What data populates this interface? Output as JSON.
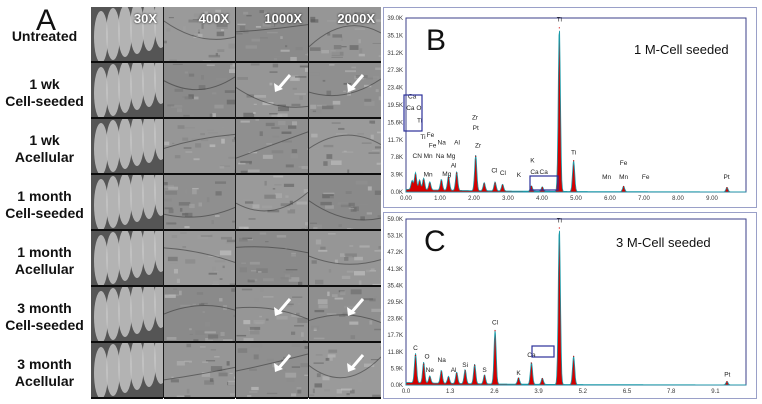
{
  "panel_a": {
    "letter": "A",
    "row_labels": [
      [
        "Untreated"
      ],
      [
        "1 wk",
        "Cell-seeded"
      ],
      [
        "1 wk",
        "Acellular"
      ],
      [
        "1 month",
        "Cell-seeded"
      ],
      [
        "1 month",
        "Acellular"
      ],
      [
        "3 month",
        "Cell-seeded"
      ],
      [
        "3 month",
        "Acellular"
      ]
    ],
    "magnifications": [
      "30X",
      "400X",
      "1000X",
      "2000X"
    ]
  },
  "chart_data": [
    {
      "type": "line",
      "panel": "B",
      "title": "1 M-Cell seeded",
      "xlabel": "",
      "ylabel": "",
      "xlim": [
        0,
        10
      ],
      "ylim": [
        0,
        39.0
      ],
      "x_ticks": [
        "0.00",
        "1.00",
        "2.00",
        "3.00",
        "4.00",
        "5.00",
        "6.00",
        "7.00",
        "8.00",
        "9.00"
      ],
      "y_ticks": [
        "0.0K",
        "3.9K",
        "7.8K",
        "11.7K",
        "15.6K",
        "19.5K",
        "23.4K",
        "27.3K",
        "31.2K",
        "35.1K",
        "39.0K"
      ],
      "peaks": [
        {
          "x": 0.18,
          "y": 2.0
        },
        {
          "x": 0.28,
          "y": 3.8
        },
        {
          "x": 0.4,
          "y": 2.2
        },
        {
          "x": 0.52,
          "y": 2.6
        },
        {
          "x": 0.7,
          "y": 1.8
        },
        {
          "x": 1.04,
          "y": 2.4
        },
        {
          "x": 1.25,
          "y": 3.2
        },
        {
          "x": 1.49,
          "y": 4.2
        },
        {
          "x": 2.05,
          "y": 8.0
        },
        {
          "x": 2.3,
          "y": 1.8
        },
        {
          "x": 2.62,
          "y": 2.0
        },
        {
          "x": 2.84,
          "y": 1.5
        },
        {
          "x": 3.69,
          "y": 1.2
        },
        {
          "x": 4.01,
          "y": 1.0
        },
        {
          "x": 4.51,
          "y": 36.8
        },
        {
          "x": 4.93,
          "y": 7.0
        },
        {
          "x": 6.4,
          "y": 1.2
        },
        {
          "x": 9.44,
          "y": 1.0
        }
      ],
      "peak_labels": [
        {
          "text": "C",
          "x": 0.26,
          "y": 7.6
        },
        {
          "text": "N",
          "x": 0.4,
          "y": 7.6
        },
        {
          "text": "Mn",
          "x": 0.65,
          "y": 7.6
        },
        {
          "text": "Ti",
          "x": 0.4,
          "y": 15.6
        },
        {
          "text": "Ti",
          "x": 0.5,
          "y": 11.9
        },
        {
          "text": "Fe",
          "x": 0.78,
          "y": 10.0
        },
        {
          "text": "Mn",
          "x": 0.65,
          "y": 3.5
        },
        {
          "text": "Fe",
          "x": 0.72,
          "y": 12.3
        },
        {
          "text": "Na",
          "x": 1.05,
          "y": 10.6
        },
        {
          "text": "Mg",
          "x": 1.32,
          "y": 7.6
        },
        {
          "text": "Al",
          "x": 1.5,
          "y": 10.6
        },
        {
          "text": "Na",
          "x": 1.0,
          "y": 7.6
        },
        {
          "text": "Mg",
          "x": 1.2,
          "y": 3.6
        },
        {
          "text": "Al",
          "x": 1.4,
          "y": 5.5
        },
        {
          "text": "Zr",
          "x": 2.03,
          "y": 16.2
        },
        {
          "text": "Pt",
          "x": 2.05,
          "y": 13.9
        },
        {
          "text": "Zr",
          "x": 2.12,
          "y": 10.0
        },
        {
          "text": "Cl",
          "x": 2.6,
          "y": 4.4
        },
        {
          "text": "Cl",
          "x": 2.85,
          "y": 3.8
        },
        {
          "text": "K",
          "x": 3.32,
          "y": 3.4
        },
        {
          "text": "K",
          "x": 3.72,
          "y": 6.6
        },
        {
          "text": "Ca",
          "x": 3.78,
          "y": 4.0
        },
        {
          "text": "Ca",
          "x": 4.05,
          "y": 4.0
        },
        {
          "text": "Ti",
          "x": 4.51,
          "y": 38.2
        },
        {
          "text": "Ti",
          "x": 4.93,
          "y": 8.4
        },
        {
          "text": "Mn",
          "x": 5.9,
          "y": 2.9
        },
        {
          "text": "Fe",
          "x": 6.4,
          "y": 6.0
        },
        {
          "text": "Mn",
          "x": 6.4,
          "y": 2.9
        },
        {
          "text": "Fe",
          "x": 7.05,
          "y": 2.9
        },
        {
          "text": "Pt",
          "x": 9.43,
          "y": 2.9
        },
        {
          "text": "Ca",
          "x": 0.18,
          "y": 21.0
        },
        {
          "text": "Ca O",
          "x": 0.23,
          "y": 18.4
        }
      ]
    },
    {
      "type": "line",
      "panel": "C",
      "title": "3 M-Cell seeded",
      "xlabel": "",
      "ylabel": "",
      "xlim": [
        0,
        10
      ],
      "ylim": [
        0,
        59.0
      ],
      "x_ticks": [
        "0.0",
        "1.3",
        "2.6",
        "3.9",
        "5.2",
        "6.5",
        "7.8",
        "9.1"
      ],
      "y_ticks": [
        "0.0K",
        "5.9K",
        "11.8K",
        "17.7K",
        "23.6K",
        "29.5K",
        "35.4K",
        "41.3K",
        "47.2K",
        "53.1K",
        "59.0K"
      ],
      "peaks": [
        {
          "x": 0.28,
          "y": 10.5
        },
        {
          "x": 0.52,
          "y": 7.4
        },
        {
          "x": 0.7,
          "y": 2.5
        },
        {
          "x": 1.04,
          "y": 4.6
        },
        {
          "x": 1.25,
          "y": 2.5
        },
        {
          "x": 1.49,
          "y": 4.0
        },
        {
          "x": 1.74,
          "y": 5.0
        },
        {
          "x": 2.02,
          "y": 7.0
        },
        {
          "x": 2.31,
          "y": 3.2
        },
        {
          "x": 2.62,
          "y": 19.3
        },
        {
          "x": 3.31,
          "y": 2.3
        },
        {
          "x": 3.69,
          "y": 7.8
        },
        {
          "x": 4.01,
          "y": 2.2
        },
        {
          "x": 4.51,
          "y": 55.8
        },
        {
          "x": 4.93,
          "y": 10.2
        },
        {
          "x": 9.44,
          "y": 1.2
        }
      ],
      "peak_labels": [
        {
          "text": "C",
          "x": 0.28,
          "y": 12.5
        },
        {
          "text": "O",
          "x": 0.62,
          "y": 9.5
        },
        {
          "text": "Na",
          "x": 1.05,
          "y": 8.2
        },
        {
          "text": "Ne",
          "x": 0.7,
          "y": 4.6
        },
        {
          "text": "Al",
          "x": 1.4,
          "y": 4.6
        },
        {
          "text": "Si",
          "x": 1.74,
          "y": 6.4
        },
        {
          "text": "S",
          "x": 2.31,
          "y": 4.6
        },
        {
          "text": "Cl",
          "x": 2.62,
          "y": 21.5
        },
        {
          "text": "K",
          "x": 3.31,
          "y": 3.6
        },
        {
          "text": "Ca",
          "x": 3.69,
          "y": 9.9
        },
        {
          "text": "Ti",
          "x": 4.51,
          "y": 57.8
        },
        {
          "text": "Pt",
          "x": 9.45,
          "y": 3.0
        }
      ]
    }
  ],
  "colors": {
    "spectrum_fill": "#d40000",
    "spectrum_line": "#1a9aa8",
    "frame": "#3b3f8a"
  }
}
